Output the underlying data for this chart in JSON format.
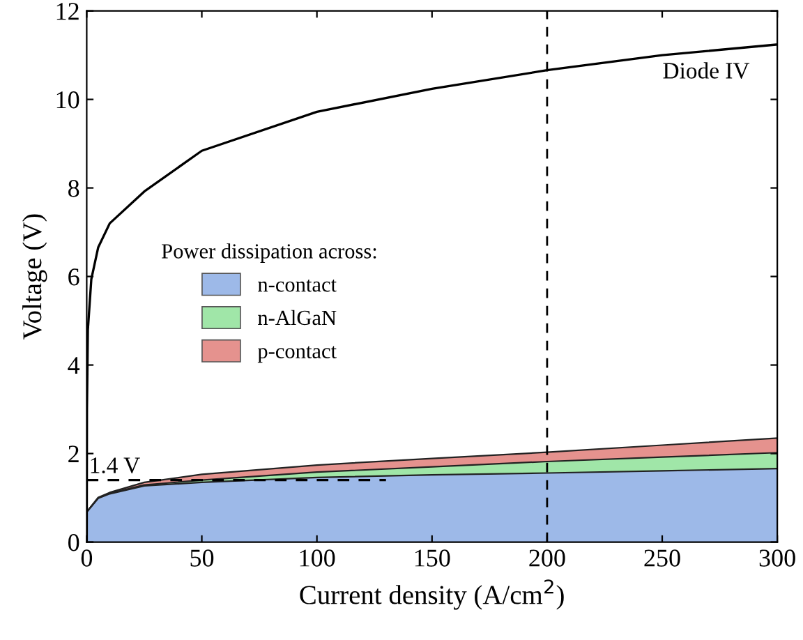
{
  "chart_data": {
    "type": "area",
    "stacked": true,
    "xlabel": "Current density (A/cm$^{2}$)",
    "ylabel": "Voltage (V)",
    "legend_title": "Power dissipation across:",
    "legend": "left",
    "grid": false,
    "xlim": [
      0,
      300
    ],
    "ylim": [
      0,
      12
    ],
    "xticks": [
      0,
      50,
      100,
      150,
      200,
      250,
      300
    ],
    "yticks": [
      0,
      2,
      4,
      6,
      8,
      10,
      12
    ],
    "x": [
      0,
      5,
      10,
      25,
      50,
      100,
      150,
      200,
      250,
      300
    ],
    "series": [
      {
        "name": "n-contact",
        "color": "#9db9e8",
        "values": [
          0.68,
          0.99,
          1.09,
          1.27,
          1.35,
          1.46,
          1.52,
          1.56,
          1.61,
          1.66
        ]
      },
      {
        "name": "n-AlGaN",
        "color": "#a0e6a8",
        "values": [
          0,
          0.01,
          0.01,
          0.02,
          0.05,
          0.12,
          0.18,
          0.26,
          0.31,
          0.36
        ]
      },
      {
        "name": "p-contact",
        "color": "#e5928e",
        "values": [
          0,
          0.01,
          0.02,
          0.06,
          0.13,
          0.16,
          0.19,
          0.21,
          0.27,
          0.33
        ]
      },
      {
        "name": "Diode IV",
        "type": "line",
        "color": "#000000",
        "x": [
          0,
          0.1,
          0.5,
          2,
          5,
          10,
          25,
          50,
          100,
          150,
          200,
          250,
          300
        ],
        "values": [
          0,
          3,
          4.8,
          5.94,
          6.66,
          7.2,
          7.92,
          8.84,
          9.72,
          10.24,
          10.66,
          11.0,
          11.24
        ]
      },
      {
        "type": "line",
        "line_style": "dashed",
        "color": "#000000",
        "x": [
          0,
          130
        ],
        "values": [
          1.4,
          1.4
        ]
      }
    ],
    "annotations": [
      {
        "text": "1.4 V",
        "x": 0,
        "y": 1.4
      }
    ],
    "ref_lines": [
      {
        "axis": "x",
        "value": 200,
        "color": "#000000",
        "line_style": "dashed"
      }
    ]
  }
}
